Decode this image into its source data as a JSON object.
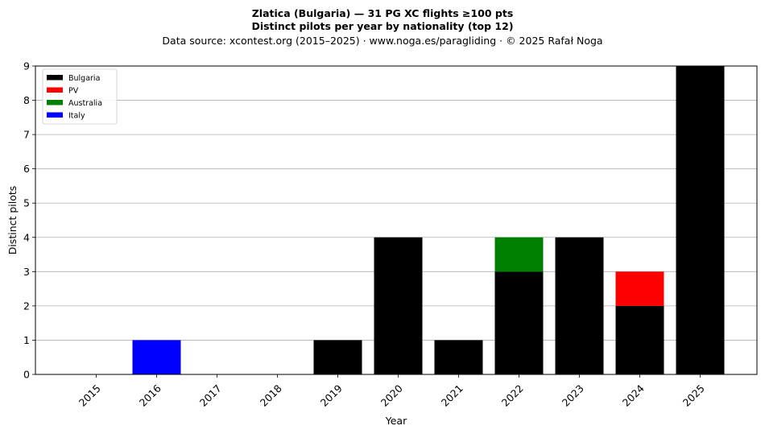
{
  "chart_data": {
    "type": "bar",
    "stacked": true,
    "title": "Zlatica (Bulgaria)  —  31 PG XC flights ≥100 pts",
    "subtitle": "Distinct pilots per year by nationality (top 12)",
    "source_note": "Data source: xcontest.org (2015–2025)  ·  www.noga.es/paragliding  ·  © 2025 Rafał Noga",
    "xlabel": "Year",
    "ylabel": "Distinct pilots",
    "categories": [
      "2015",
      "2016",
      "2017",
      "2018",
      "2019",
      "2020",
      "2021",
      "2022",
      "2023",
      "2024",
      "2025"
    ],
    "ylim": [
      0,
      9
    ],
    "yticks": [
      0,
      1,
      2,
      3,
      4,
      5,
      6,
      7,
      8,
      9
    ],
    "grid": "y",
    "legend_position": "top-left",
    "series": [
      {
        "name": "Bulgaria",
        "color": "#000000",
        "values": [
          0,
          0,
          0,
          0,
          1,
          4,
          1,
          3,
          4,
          2,
          9
        ]
      },
      {
        "name": "PV",
        "color": "#ff0000",
        "values": [
          0,
          0,
          0,
          0,
          0,
          0,
          0,
          0,
          0,
          1,
          0
        ]
      },
      {
        "name": "Australia",
        "color": "#008000",
        "values": [
          0,
          0,
          0,
          0,
          0,
          0,
          0,
          1,
          0,
          0,
          0
        ]
      },
      {
        "name": "Italy",
        "color": "#0000ff",
        "values": [
          0,
          1,
          0,
          0,
          0,
          0,
          0,
          0,
          0,
          0,
          0
        ]
      }
    ]
  }
}
